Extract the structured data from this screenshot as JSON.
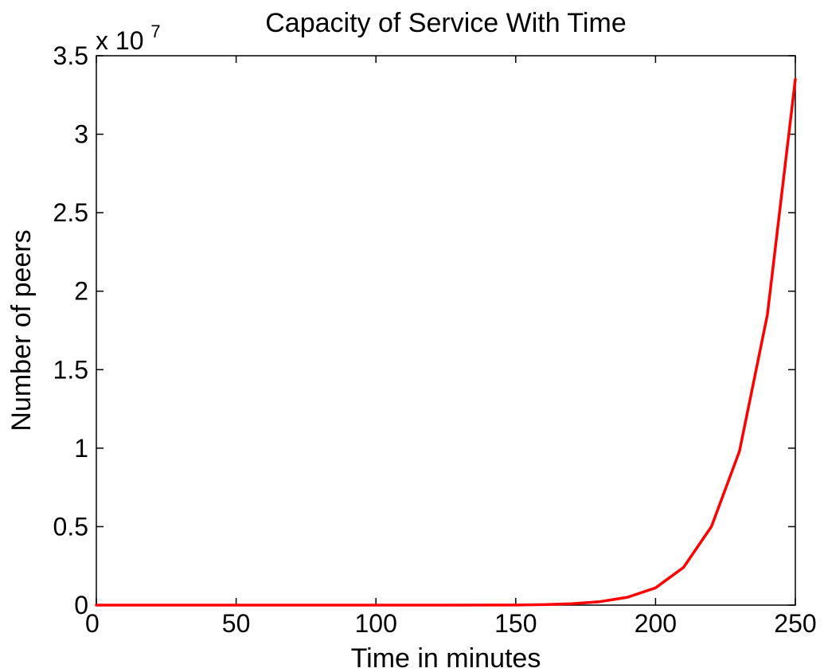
{
  "chart_data": {
    "type": "line",
    "title": "Capacity of Service With Time",
    "xlabel": "Time in minutes",
    "ylabel": "Number of peers",
    "y_exponent_label": "x 10",
    "y_exponent_power": "7",
    "y_multiplier": 10000000,
    "xlim": [
      0,
      250
    ],
    "ylim": [
      0,
      35000000
    ],
    "x_ticks": [
      0,
      50,
      100,
      150,
      200,
      250
    ],
    "x_tick_labels": [
      "0",
      "50",
      "100",
      "150",
      "200",
      "250"
    ],
    "y_ticks": [
      0,
      5000000,
      10000000,
      15000000,
      20000000,
      25000000,
      30000000,
      35000000
    ],
    "y_tick_labels": [
      "0",
      "0.5",
      "1",
      "1.5",
      "2",
      "2.5",
      "3",
      "3.5"
    ],
    "grid": false,
    "series": [
      {
        "color": "#ff0000",
        "x": [
          0,
          25,
          50,
          75,
          100,
          125,
          150,
          160,
          170,
          180,
          190,
          200,
          210,
          220,
          230,
          240,
          250
        ],
        "y": [
          0,
          0,
          0,
          0,
          0,
          0,
          5000,
          30000,
          90000,
          220000,
          500000,
          1100000,
          2400000,
          5000000,
          9800000,
          18500000,
          33500000
        ]
      }
    ]
  }
}
